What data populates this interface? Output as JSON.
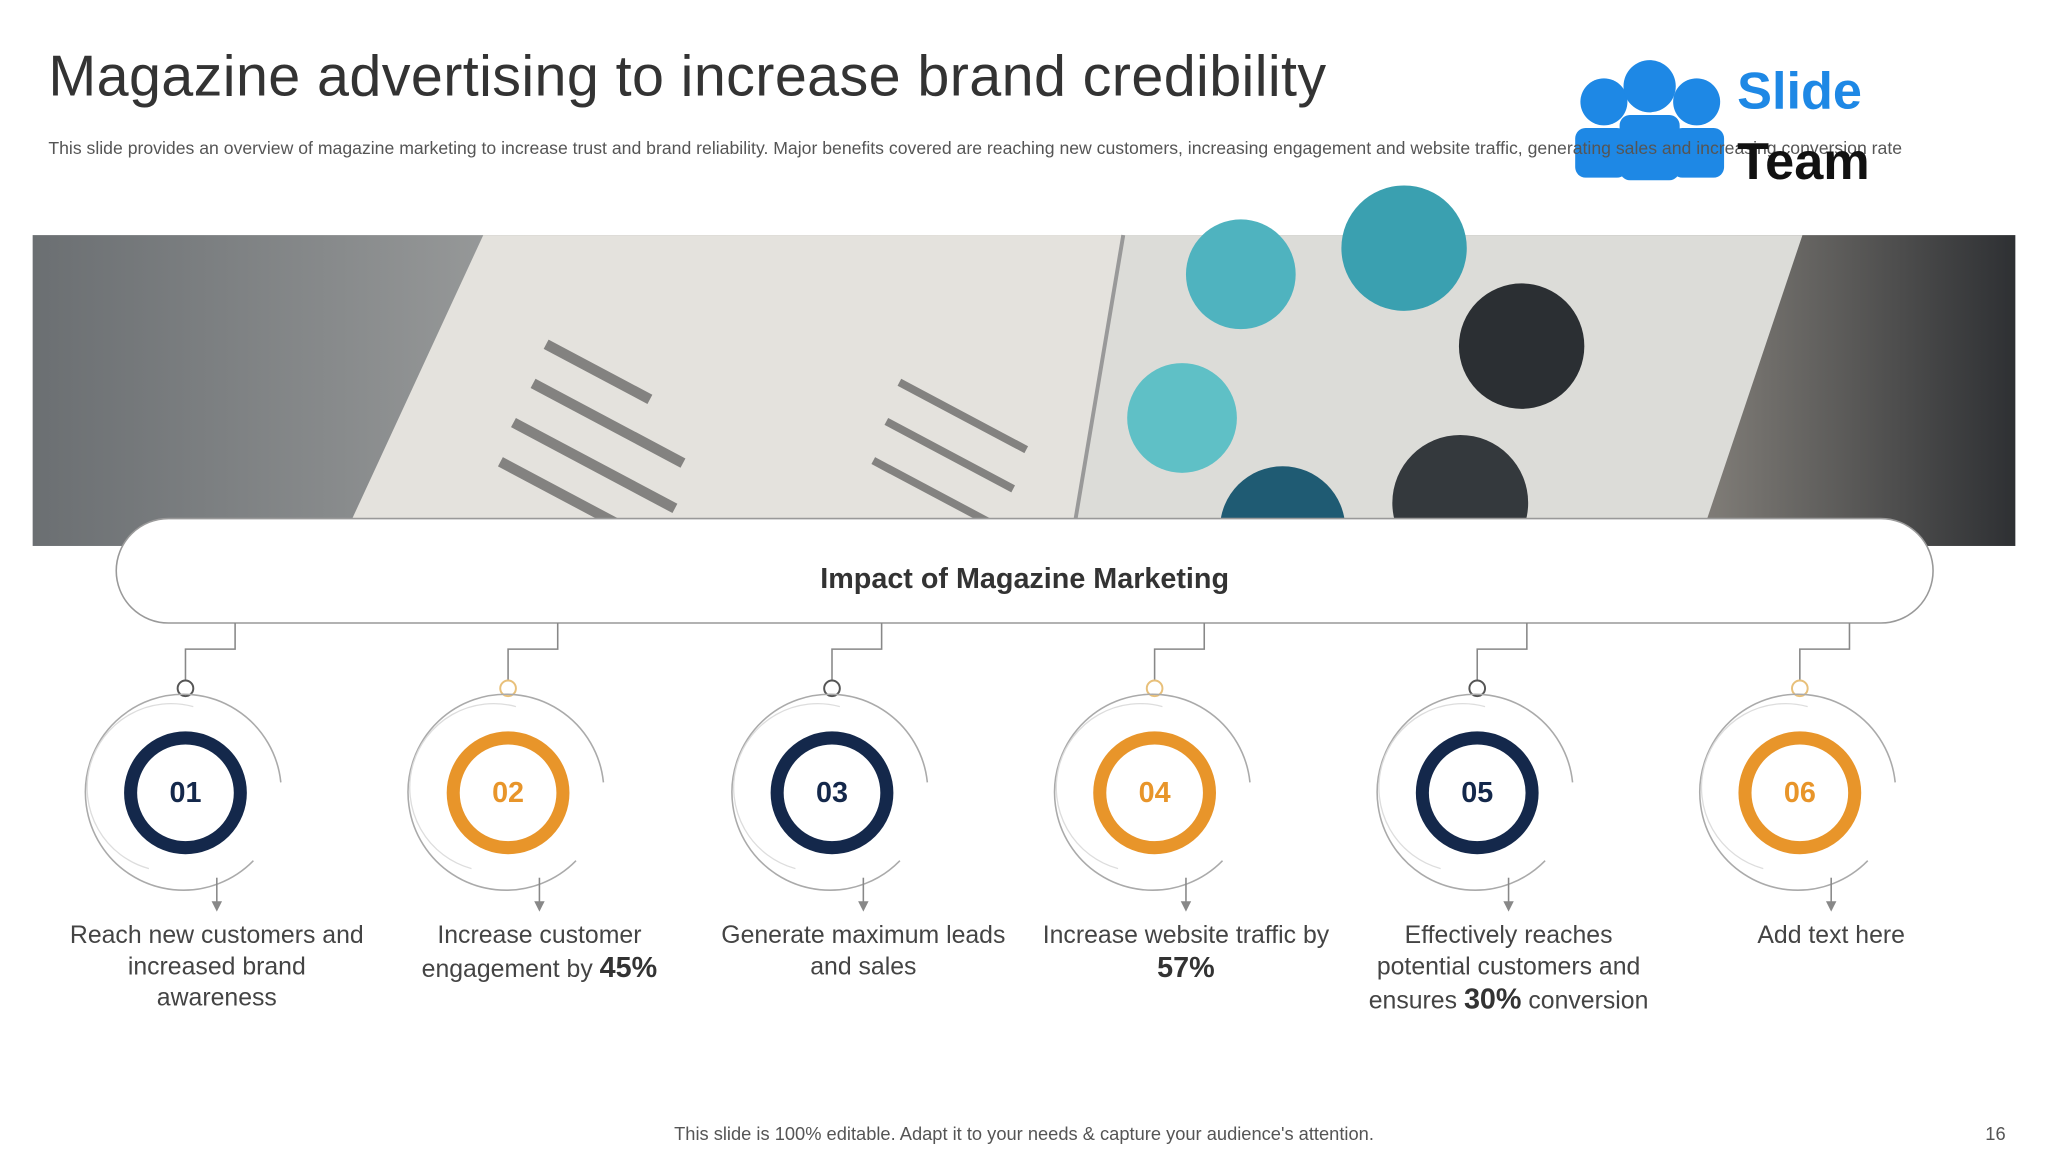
{
  "header": {
    "title": "Magazine advertising to increase brand credibility",
    "subtitle": "This slide provides an overview of magazine marketing to increase trust and brand reliability. Major benefits covered are reaching new customers, increasing engagement and website traffic, generating sales and increasing conversion rate"
  },
  "logo": {
    "line1": "Slide",
    "line2": "Team"
  },
  "banner": {
    "title": "Impact of Magazine Marketing"
  },
  "items": [
    {
      "number": "01",
      "text": "Reach new customers and increased brand awareness"
    },
    {
      "number": "02",
      "text": "Increase customer engagement by",
      "highlight": "45%"
    },
    {
      "number": "03",
      "text": "Generate maximum leads and sales"
    },
    {
      "number": "04",
      "text": "Increase website traffic by",
      "highlight": "57%"
    },
    {
      "number": "05",
      "text": "Effectively reaches potential customers and ensures",
      "highlight": "30%",
      "text_after": "conversion"
    },
    {
      "number": "06",
      "text": "Add text here"
    }
  ],
  "footer": {
    "note": "This slide is 100% editable. Adapt it to your needs & capture your audience's attention.",
    "page": "16"
  }
}
